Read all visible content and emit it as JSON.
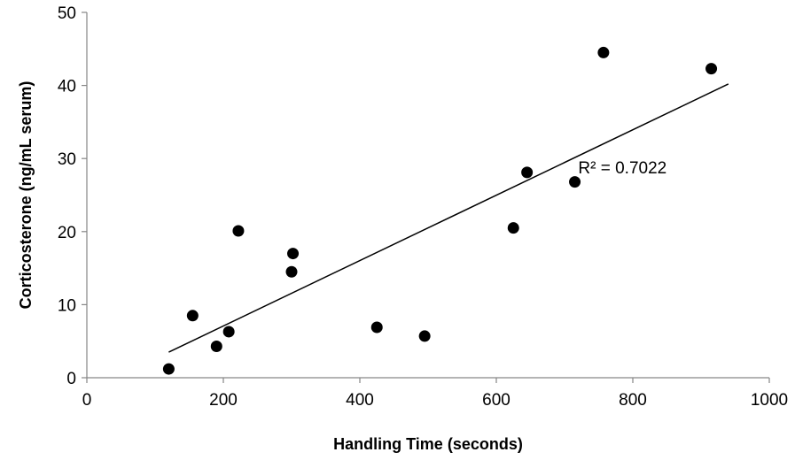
{
  "chart_data": {
    "type": "scatter",
    "xlabel": "Handling Time (seconds)",
    "ylabel": "Corticosterone (ng/mL serum)",
    "xlim": [
      0,
      1000
    ],
    "ylim": [
      0,
      50
    ],
    "xticks": [
      0,
      200,
      400,
      600,
      800,
      1000
    ],
    "yticks": [
      0,
      10,
      20,
      30,
      40,
      50
    ],
    "grid": false,
    "legend": "none",
    "marker_color": "#000000",
    "points": [
      {
        "x": 120,
        "y": 1.2
      },
      {
        "x": 155,
        "y": 8.5
      },
      {
        "x": 190,
        "y": 4.3
      },
      {
        "x": 208,
        "y": 6.3
      },
      {
        "x": 222,
        "y": 20.1
      },
      {
        "x": 300,
        "y": 14.5
      },
      {
        "x": 302,
        "y": 17.0
      },
      {
        "x": 425,
        "y": 6.9
      },
      {
        "x": 495,
        "y": 5.7
      },
      {
        "x": 625,
        "y": 20.5
      },
      {
        "x": 645,
        "y": 28.1
      },
      {
        "x": 715,
        "y": 26.8
      },
      {
        "x": 757,
        "y": 44.5
      },
      {
        "x": 915,
        "y": 42.3
      }
    ],
    "trendline": {
      "type": "linear",
      "x": [
        120,
        940
      ],
      "y": [
        3.5,
        40.2
      ],
      "color": "#000000"
    },
    "annotation": {
      "text": "R² = 0.7022",
      "x": 720,
      "y": 28.8
    }
  }
}
